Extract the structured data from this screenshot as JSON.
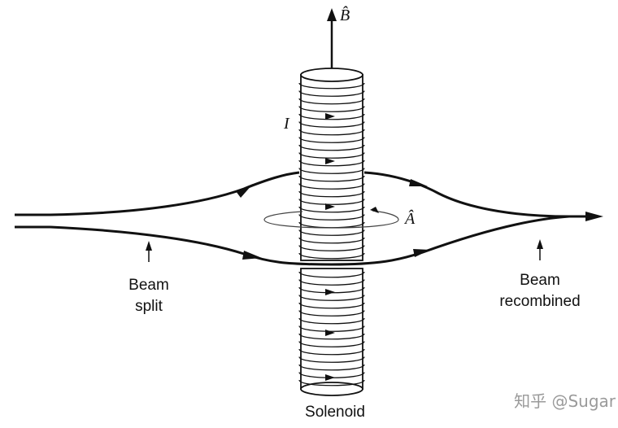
{
  "diagram": {
    "labels": {
      "b_field": "B̂",
      "current": "I",
      "vector_potential": "Â",
      "beam_split_line1": "Beam",
      "beam_split_line2": "split",
      "beam_recombined_line1": "Beam",
      "beam_recombined_line2": "recombined",
      "solenoid": "Solenoid"
    },
    "watermark": "知乎 @Sugar",
    "colors": {
      "ink": "#111111",
      "watermark": "#9a9a9a",
      "background": "#ffffff"
    }
  }
}
